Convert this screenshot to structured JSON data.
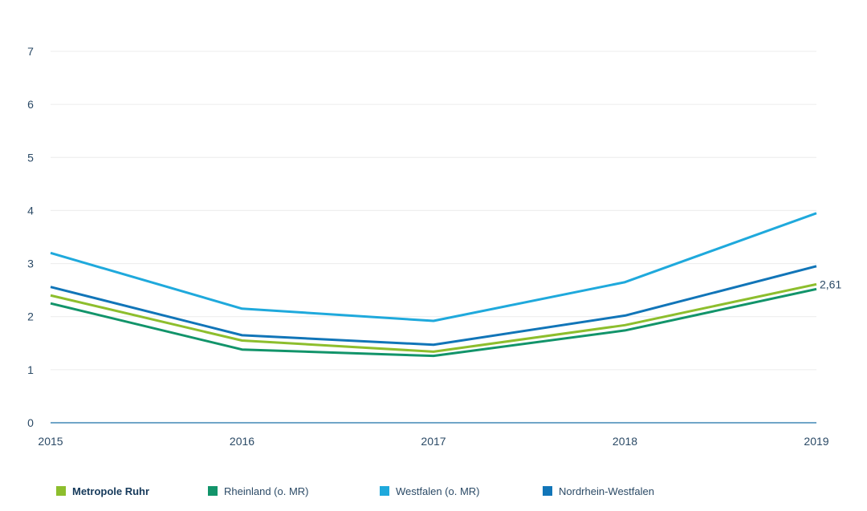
{
  "chart_data": {
    "type": "line",
    "title": "",
    "xlabel": "",
    "ylabel": "",
    "x": [
      "2015",
      "2016",
      "2017",
      "2018",
      "2019"
    ],
    "ylim": [
      0,
      7
    ],
    "yticks": [
      "0",
      "1",
      "2",
      "3",
      "4",
      "5",
      "6",
      "7"
    ],
    "grid": true,
    "legend_position": "bottom",
    "series": [
      {
        "name": "Metropole Ruhr",
        "color": "#8DBE2D",
        "values": [
          2.4,
          1.55,
          1.34,
          1.84,
          2.61
        ],
        "highlight": true
      },
      {
        "name": "Rheinland (o. MR)",
        "color": "#12946A",
        "values": [
          2.25,
          1.38,
          1.26,
          1.74,
          2.52
        ],
        "highlight": false
      },
      {
        "name": "Westfalen (o. MR)",
        "color": "#1FA9DC",
        "values": [
          3.2,
          2.15,
          1.92,
          2.65,
          3.95
        ],
        "highlight": false
      },
      {
        "name": "Nordrhein-Westfalen",
        "color": "#1175B8",
        "values": [
          2.56,
          1.65,
          1.47,
          2.02,
          2.95
        ],
        "highlight": false
      }
    ],
    "annotations": [
      {
        "series": "Metropole Ruhr",
        "x": "2019",
        "text": "2,61"
      }
    ]
  }
}
